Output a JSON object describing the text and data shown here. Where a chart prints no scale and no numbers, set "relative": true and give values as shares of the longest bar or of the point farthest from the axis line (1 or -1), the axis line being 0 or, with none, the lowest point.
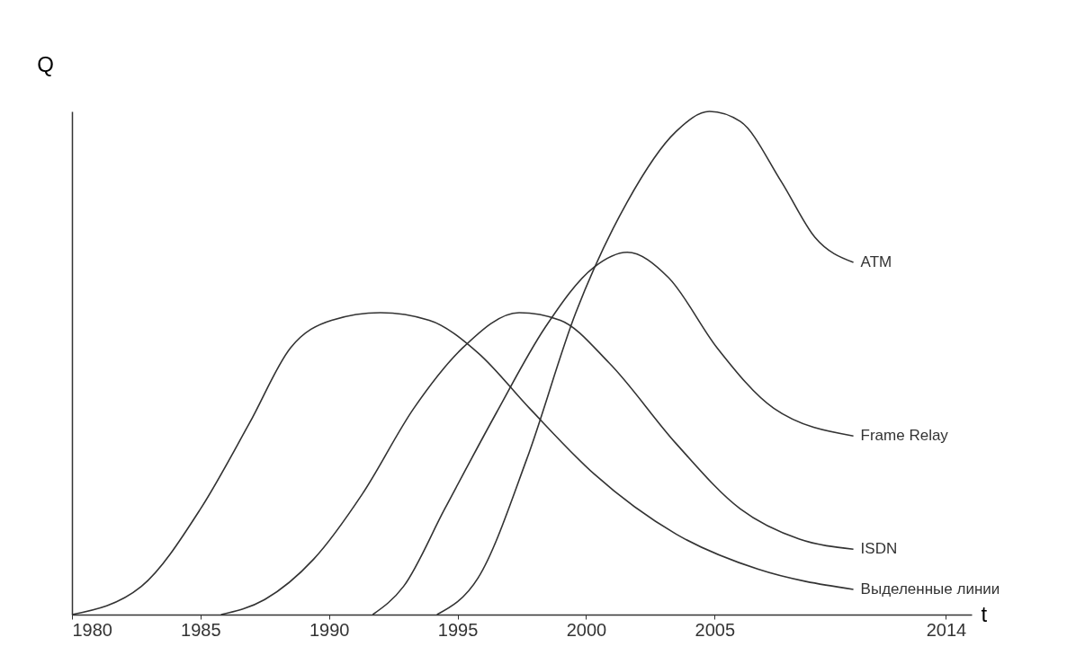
{
  "chart_data": {
    "type": "line",
    "xlabel": "t",
    "ylabel": "Q",
    "relative": true,
    "xlim": [
      1980,
      2015
    ],
    "xticks": [
      1980,
      1985,
      1990,
      1995,
      2000,
      2005,
      2014
    ],
    "grid": false,
    "legend": false,
    "marker": "none",
    "line_style": "solid",
    "series": [
      {
        "name": "Выделенные линии",
        "color": "#333333",
        "x": [
          1980,
          1982.7,
          1985,
          1986.9,
          1988.5,
          1990.1,
          1992,
          1993.9,
          1995.8,
          1997.8,
          2000.3,
          2003.5,
          2006.7,
          2010.4
        ],
        "values": [
          0,
          0.056,
          0.21,
          0.38,
          0.53,
          0.585,
          0.6,
          0.585,
          0.52,
          0.41,
          0.28,
          0.16,
          0.09,
          0.05
        ]
      },
      {
        "name": "ISDN",
        "color": "#333333",
        "x": [
          1985.8,
          1987.5,
          1989.4,
          1991.3,
          1993.3,
          1995.2,
          1997.4,
          1999,
          2000.9,
          2003.5,
          2006,
          2008.3,
          2010.4
        ],
        "values": [
          0,
          0.03,
          0.11,
          0.24,
          0.41,
          0.53,
          0.6,
          0.585,
          0.5,
          0.34,
          0.21,
          0.15,
          0.13
        ]
      },
      {
        "name": "Frame Relay",
        "color": "#333333",
        "x": [
          1991.7,
          1992.9,
          1994.5,
          1996.5,
          1998.4,
          2000.3,
          2001.6,
          2003.2,
          2005.1,
          2007.3,
          2010.4
        ],
        "values": [
          0,
          0.056,
          0.21,
          0.4,
          0.57,
          0.69,
          0.72,
          0.67,
          0.53,
          0.41,
          0.355
        ]
      },
      {
        "name": "ATM",
        "color": "#333333",
        "x": [
          1994.2,
          1995.8,
          1997.7,
          1999.6,
          2001.6,
          2003.5,
          2004.8,
          2006,
          2007.6,
          2008.9,
          2010.4
        ],
        "values": [
          0,
          0.073,
          0.31,
          0.6,
          0.82,
          0.96,
          1,
          0.98,
          0.86,
          0.75,
          0.7
        ]
      }
    ]
  }
}
